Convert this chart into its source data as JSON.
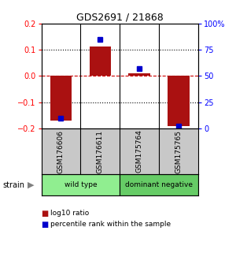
{
  "title": "GDS2691 / 21868",
  "samples": [
    "GSM176606",
    "GSM176611",
    "GSM175764",
    "GSM175765"
  ],
  "log10_ratio": [
    -0.17,
    0.112,
    0.01,
    -0.19
  ],
  "percentile_rank": [
    10,
    85,
    57,
    2
  ],
  "groups": [
    {
      "label": "wild type",
      "samples": [
        0,
        1
      ],
      "color": "#90ee90"
    },
    {
      "label": "dominant negative",
      "samples": [
        2,
        3
      ],
      "color": "#66cc66"
    }
  ],
  "ylim": [
    -0.2,
    0.2
  ],
  "bar_color": "#aa1111",
  "dot_color": "#0000cc",
  "background_color": "#ffffff",
  "zero_line_color": "#cc0000",
  "label_area_color": "#c8c8c8",
  "bar_width": 0.55
}
